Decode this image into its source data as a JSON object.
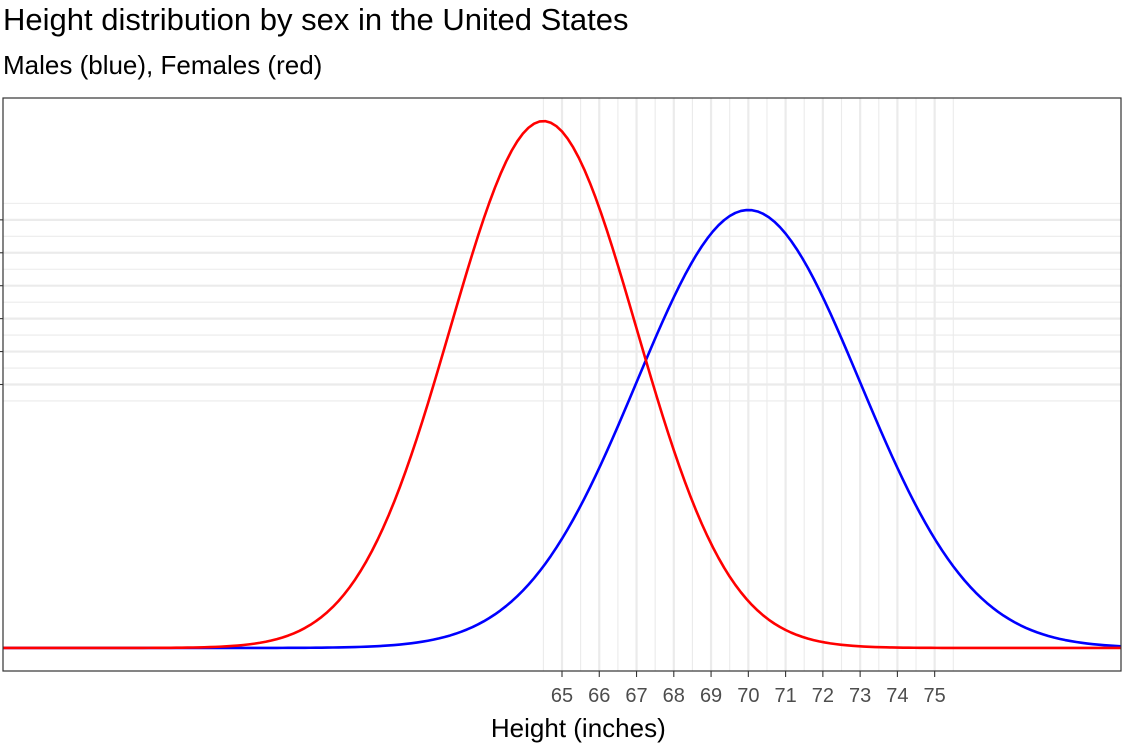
{
  "title": "Height distribution by sex in the United States",
  "subtitle": "Males (blue), Females (red)",
  "chart_data": {
    "type": "line",
    "title": "Height distribution by sex in the United States",
    "subtitle": "Males (blue), Females (red)",
    "xlabel": "Height (inches)",
    "ylabel": "",
    "xlim": [
      50,
      80
    ],
    "ylim": [
      -0.007,
      0.167
    ],
    "x_ticks": [
      65,
      66,
      67,
      68,
      69,
      70,
      71,
      72,
      73,
      74,
      75
    ],
    "x_tick_labels": [
      "65",
      "66",
      "67",
      "68",
      "69",
      "70",
      "71",
      "72",
      "73",
      "74",
      "75"
    ],
    "x_minor_gridlines": [
      64.5,
      65.5,
      66.5,
      67.5,
      68.5,
      69.5,
      70.5,
      71.5,
      72.5,
      73.5,
      74.5,
      75.5
    ],
    "y_major_gridlines": [
      0.08,
      0.09,
      0.1,
      0.11,
      0.12,
      0.13
    ],
    "y_minor_gridlines": [
      0.075,
      0.085,
      0.095,
      0.105,
      0.115,
      0.125,
      0.135
    ],
    "y_tick_labels": [],
    "grid": true,
    "legend": "none",
    "series": [
      {
        "name": "Males",
        "color": "#0000ff",
        "distribution": "normal",
        "mean": 70,
        "sd": 3,
        "x_range": [
          50,
          80
        ],
        "peak": 0.133
      },
      {
        "name": "Females",
        "color": "#ff0000",
        "distribution": "normal",
        "mean": 64.5,
        "sd": 2.5,
        "x_range": [
          50,
          80
        ],
        "peak": 0.16
      }
    ]
  }
}
